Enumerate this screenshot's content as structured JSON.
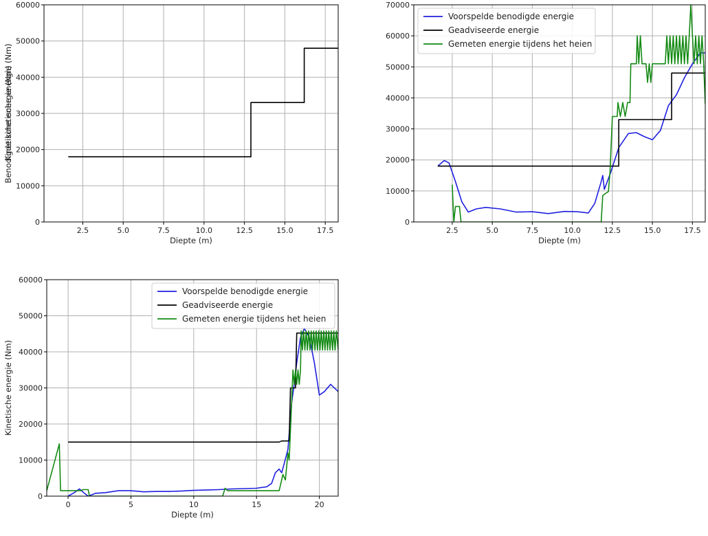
{
  "chart_data": [
    {
      "type": "line",
      "xlabel": "Diepte (m)",
      "ylabel": "Benodigde kinetische energie (Nm)",
      "xlim": [
        0.1,
        18.3
      ],
      "ylim": [
        0,
        60000
      ],
      "xticks": [
        2.5,
        5.0,
        7.5,
        10.0,
        12.5,
        15.0,
        17.5
      ],
      "yticks": [
        0,
        10000,
        20000,
        30000,
        40000,
        50000,
        60000
      ],
      "xtick_labels": [
        "2.5",
        "5.0",
        "7.5",
        "10.0",
        "12.5",
        "15.0",
        "17.5"
      ],
      "ytick_labels": [
        "0",
        "10000",
        "20000",
        "30000",
        "40000",
        "50000",
        "60000"
      ],
      "grid": true,
      "legend": null,
      "series": [
        {
          "color": "#000000",
          "points": [
            [
              1.6,
              18000
            ],
            [
              12.9,
              18000
            ],
            [
              12.9,
              33000
            ],
            [
              16.2,
              33000
            ],
            [
              16.2,
              48000
            ],
            [
              18.3,
              48000
            ]
          ]
        }
      ]
    },
    {
      "type": "line",
      "xlabel": "Diepte (m)",
      "ylabel": "Kinetische energie (Nm)",
      "xlim": [
        0.1,
        18.3
      ],
      "ylim": [
        0,
        70000
      ],
      "xticks": [
        2.5,
        5.0,
        7.5,
        10.0,
        12.5,
        15.0,
        17.5
      ],
      "yticks": [
        0,
        10000,
        20000,
        30000,
        40000,
        50000,
        60000,
        70000
      ],
      "xtick_labels": [
        "2.5",
        "5.0",
        "7.5",
        "10.0",
        "12.5",
        "15.0",
        "17.5"
      ],
      "ytick_labels": [
        "0",
        "10000",
        "20000",
        "30000",
        "40000",
        "50000",
        "60000",
        "70000"
      ],
      "grid": true,
      "legend": "top-left",
      "series": [
        {
          "name": "Voorspelde benodigde energie",
          "color": "#1f1fe0",
          "points": [
            [
              1.6,
              18000
            ],
            [
              2.0,
              19800
            ],
            [
              2.3,
              19000
            ],
            [
              2.7,
              13000
            ],
            [
              3.1,
              6500
            ],
            [
              3.5,
              3200
            ],
            [
              4.0,
              4200
            ],
            [
              4.6,
              4700
            ],
            [
              5.5,
              4200
            ],
            [
              6.5,
              3200
            ],
            [
              7.5,
              3300
            ],
            [
              8.5,
              2700
            ],
            [
              9.5,
              3400
            ],
            [
              10.3,
              3300
            ],
            [
              11.0,
              2900
            ],
            [
              11.4,
              6000
            ],
            [
              11.8,
              13000
            ],
            [
              11.9,
              15000
            ],
            [
              12.0,
              10500
            ],
            [
              12.4,
              16000
            ],
            [
              12.9,
              24000
            ],
            [
              13.5,
              28500
            ],
            [
              14.0,
              28800
            ],
            [
              14.5,
              27500
            ],
            [
              15.0,
              26500
            ],
            [
              15.5,
              29500
            ],
            [
              16.0,
              37500
            ],
            [
              16.5,
              41000
            ],
            [
              17.0,
              46500
            ],
            [
              17.5,
              51000
            ],
            [
              18.0,
              54500
            ],
            [
              18.3,
              54500
            ]
          ]
        },
        {
          "name": "Geadviseerde energie",
          "color": "#000000",
          "points": [
            [
              1.6,
              18000
            ],
            [
              12.9,
              18000
            ],
            [
              12.9,
              33000
            ],
            [
              16.2,
              33000
            ],
            [
              16.2,
              48000
            ],
            [
              18.3,
              48000
            ]
          ]
        },
        {
          "name": "Gemeten energie tijdens het heien",
          "color": "#138a13",
          "points": [
            [
              2.5,
              12000
            ],
            [
              2.6,
              0
            ],
            [
              2.7,
              5000
            ],
            [
              2.95,
              5000
            ],
            [
              3.05,
              0
            ],
            [
              11.8,
              0
            ],
            [
              11.9,
              8500
            ],
            [
              12.1,
              9300
            ],
            [
              12.25,
              9800
            ],
            [
              12.35,
              16000
            ],
            [
              12.5,
              34000
            ],
            [
              12.8,
              34000
            ],
            [
              12.85,
              38500
            ],
            [
              13.0,
              34000
            ],
            [
              13.15,
              38500
            ],
            [
              13.3,
              34000
            ],
            [
              13.45,
              38500
            ],
            [
              13.6,
              38500
            ],
            [
              13.65,
              51000
            ],
            [
              14.0,
              51000
            ],
            [
              14.05,
              60000
            ],
            [
              14.15,
              51000
            ],
            [
              14.25,
              60000
            ],
            [
              14.35,
              51000
            ],
            [
              14.6,
              51000
            ],
            [
              14.7,
              45000
            ],
            [
              14.8,
              51000
            ],
            [
              14.9,
              45000
            ],
            [
              15.0,
              51000
            ],
            [
              15.8,
              51000
            ],
            [
              15.9,
              60000
            ],
            [
              16.0,
              51000
            ],
            [
              16.1,
              60000
            ],
            [
              16.2,
              51000
            ],
            [
              16.3,
              60000
            ],
            [
              16.4,
              51000
            ],
            [
              16.5,
              60000
            ],
            [
              16.6,
              51000
            ],
            [
              16.7,
              60000
            ],
            [
              16.8,
              51000
            ],
            [
              16.9,
              60000
            ],
            [
              17.0,
              51000
            ],
            [
              17.1,
              60000
            ],
            [
              17.2,
              51000
            ],
            [
              17.3,
              60000
            ],
            [
              17.4,
              70000
            ],
            [
              17.5,
              60000
            ],
            [
              17.6,
              51000
            ],
            [
              17.7,
              60000
            ],
            [
              17.8,
              51000
            ],
            [
              17.9,
              60000
            ],
            [
              18.0,
              51000
            ],
            [
              18.1,
              60000
            ],
            [
              18.2,
              51000
            ],
            [
              18.3,
              38000
            ]
          ]
        }
      ]
    },
    {
      "type": "line",
      "xlabel": "Diepte (m)",
      "ylabel": "Kinetische energie (Nm)",
      "xlim": [
        -1.7,
        21.5
      ],
      "ylim": [
        0,
        60000
      ],
      "xticks": [
        0,
        5,
        10,
        15,
        20
      ],
      "yticks": [
        0,
        10000,
        20000,
        30000,
        40000,
        50000,
        60000
      ],
      "xtick_labels": [
        "0",
        "5",
        "10",
        "15",
        "20"
      ],
      "ytick_labels": [
        "0",
        "10000",
        "20000",
        "30000",
        "40000",
        "50000",
        "60000"
      ],
      "grid": true,
      "legend": "top-right",
      "series": [
        {
          "name": "Voorspelde benodigde energie",
          "color": "#1f1fe0",
          "points": [
            [
              0.0,
              0
            ],
            [
              0.5,
              1000
            ],
            [
              0.9,
              2000
            ],
            [
              1.3,
              800
            ],
            [
              1.6,
              0
            ],
            [
              2.2,
              800
            ],
            [
              3.0,
              1000
            ],
            [
              4.0,
              1500
            ],
            [
              5.0,
              1500
            ],
            [
              6.0,
              1200
            ],
            [
              7.0,
              1300
            ],
            [
              8.0,
              1300
            ],
            [
              9.0,
              1400
            ],
            [
              10.0,
              1600
            ],
            [
              11.0,
              1700
            ],
            [
              12.0,
              1800
            ],
            [
              13.0,
              2000
            ],
            [
              14.0,
              2100
            ],
            [
              15.0,
              2200
            ],
            [
              15.8,
              2600
            ],
            [
              16.2,
              3500
            ],
            [
              16.5,
              6500
            ],
            [
              16.8,
              7500
            ],
            [
              17.0,
              6500
            ],
            [
              17.2,
              9000
            ],
            [
              17.5,
              13000
            ],
            [
              17.8,
              26000
            ],
            [
              18.0,
              31000
            ],
            [
              18.2,
              37000
            ],
            [
              18.5,
              44000
            ],
            [
              18.8,
              46500
            ],
            [
              19.2,
              44000
            ],
            [
              19.6,
              37000
            ],
            [
              20.0,
              28000
            ],
            [
              20.4,
              29000
            ],
            [
              20.9,
              31000
            ],
            [
              21.5,
              29000
            ]
          ]
        },
        {
          "name": "Geadviseerde energie",
          "color": "#000000",
          "points": [
            [
              0.0,
              15000
            ],
            [
              16.8,
              15000
            ],
            [
              17.0,
              15300
            ],
            [
              17.6,
              15300
            ],
            [
              17.7,
              30000
            ],
            [
              18.1,
              30000
            ],
            [
              18.2,
              45200
            ],
            [
              21.5,
              45200
            ]
          ]
        },
        {
          "name": "Gemeten energie tijdens het heien",
          "color": "#138a13",
          "points": [
            [
              -1.7,
              1500
            ],
            [
              -0.7,
              14500
            ],
            [
              -0.6,
              1500
            ],
            [
              1.0,
              1500
            ],
            [
              1.2,
              1800
            ],
            [
              1.6,
              1800
            ],
            [
              1.7,
              0
            ],
            [
              12.3,
              0
            ],
            [
              12.5,
              2200
            ],
            [
              12.7,
              1500
            ],
            [
              16.8,
              1500
            ],
            [
              17.1,
              6000
            ],
            [
              17.3,
              4500
            ],
            [
              17.5,
              12000
            ],
            [
              17.6,
              10000
            ],
            [
              17.8,
              26500
            ],
            [
              17.9,
              35000
            ],
            [
              18.0,
              31000
            ],
            [
              18.1,
              35000
            ],
            [
              18.2,
              31000
            ],
            [
              18.3,
              35000
            ],
            [
              18.4,
              31000
            ],
            [
              18.5,
              35000
            ],
            [
              18.55,
              45800
            ],
            [
              18.65,
              40500
            ],
            [
              18.75,
              45800
            ],
            [
              18.85,
              40500
            ],
            [
              18.95,
              45800
            ],
            [
              19.05,
              40500
            ],
            [
              19.15,
              45800
            ],
            [
              19.25,
              40500
            ],
            [
              19.35,
              45800
            ],
            [
              19.45,
              40500
            ],
            [
              19.55,
              45800
            ],
            [
              19.65,
              40500
            ],
            [
              19.75,
              45800
            ],
            [
              19.85,
              40500
            ],
            [
              19.95,
              45800
            ],
            [
              20.05,
              40500
            ],
            [
              20.15,
              45800
            ],
            [
              20.25,
              40500
            ],
            [
              20.35,
              45800
            ],
            [
              20.45,
              40500
            ],
            [
              20.55,
              45800
            ],
            [
              20.65,
              40500
            ],
            [
              20.75,
              45800
            ],
            [
              20.85,
              40500
            ],
            [
              20.95,
              45800
            ],
            [
              21.05,
              40500
            ],
            [
              21.15,
              45800
            ],
            [
              21.25,
              40500
            ],
            [
              21.35,
              45800
            ],
            [
              21.5,
              40500
            ]
          ]
        }
      ]
    }
  ]
}
